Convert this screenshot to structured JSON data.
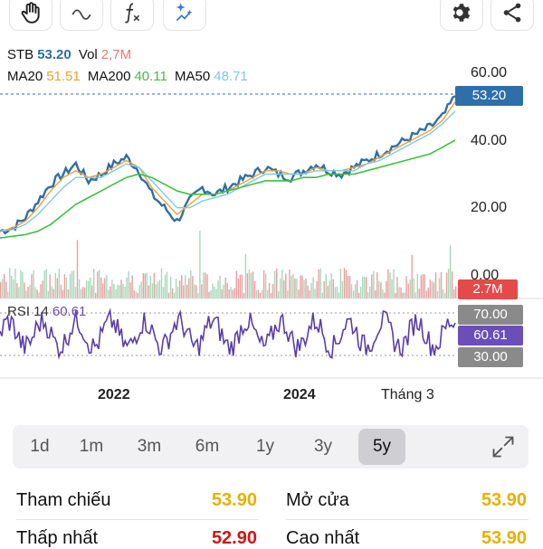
{
  "toolbar": {
    "left_icons": [
      "hand-icon",
      "curve-icon",
      "function-icon",
      "ai-sparkle-icon"
    ],
    "right_icons": [
      "gear-icon",
      "share-icon"
    ]
  },
  "legend": {
    "symbol": "STB",
    "price": "53.20",
    "vol_label": "Vol",
    "vol": "2,7M",
    "ma20_label": "MA20",
    "ma20": "51.51",
    "ma200_label": "MA200",
    "ma200": "40.11",
    "ma50_label": "MA50",
    "ma50": "48.71",
    "rsi_label": "RSI 14",
    "rsi": "60.61"
  },
  "colors": {
    "price_line": "#2f6ea8",
    "ma20": "#f0a030",
    "ma200": "#3fbf3f",
    "ma50": "#7ec8e8",
    "rsi": "#5a3ea8",
    "price_box": "#2e6fa8",
    "vol_box": "#e44a4a",
    "rsi_box": "#6a4fb8",
    "level_box": "#8a8a8a"
  },
  "axis": {
    "y_labels": [
      "60.00",
      "40.00",
      "20.00",
      "0.00"
    ],
    "x_labels": [
      "2022",
      "2024",
      "Tháng 3"
    ]
  },
  "badges": {
    "price": "53.20",
    "volume": "2.7M",
    "rsi_high": "70.00",
    "rsi_value": "60.61",
    "rsi_low": "30.00"
  },
  "ranges": {
    "items": [
      "1d",
      "1m",
      "3m",
      "6m",
      "1y",
      "3y",
      "5y"
    ],
    "active": "5y"
  },
  "stats": {
    "ref_label": "Tham chiếu",
    "ref_value": "53.90",
    "open_label": "Mở cửa",
    "open_value": "53.90",
    "low_label": "Thấp nhất",
    "low_value": "52.90",
    "high_label": "Cao nhất",
    "high_value": "53.90"
  },
  "chart_data": {
    "type": "line",
    "x_labels": [
      "2022",
      "2024",
      "Tháng 3"
    ],
    "y_ticks": [
      0,
      20,
      40,
      60
    ],
    "ylim": [
      0,
      62
    ],
    "series": [
      {
        "name": "STB",
        "values": [
          13,
          14,
          17,
          22,
          27,
          30,
          33,
          28,
          30,
          33,
          35,
          31,
          24,
          20,
          16,
          22,
          26,
          24,
          26,
          28,
          30,
          32,
          30,
          29,
          31,
          33,
          31,
          30,
          32,
          34,
          36,
          38,
          40,
          42,
          44,
          47,
          53.2
        ]
      },
      {
        "name": "MA20",
        "values": [
          13,
          14,
          16,
          20,
          25,
          29,
          31,
          29,
          30,
          32,
          34,
          32,
          26,
          22,
          18,
          21,
          24,
          24,
          25,
          27,
          29,
          31,
          31,
          30,
          30,
          32,
          31,
          31,
          32,
          33,
          35,
          37,
          39,
          41,
          43,
          46,
          51.51
        ]
      },
      {
        "name": "MA50",
        "values": [
          13,
          13.5,
          15,
          18,
          22,
          26,
          29,
          29,
          29,
          31,
          33,
          32,
          28,
          24,
          20,
          20,
          22,
          23,
          24,
          26,
          28,
          30,
          30,
          30,
          30,
          31,
          31,
          31,
          31,
          33,
          34,
          36,
          38,
          40,
          42,
          45,
          48.71
        ]
      },
      {
        "name": "MA200",
        "values": [
          11,
          11.5,
          12,
          13,
          15,
          18,
          21,
          23,
          25,
          27,
          29,
          30,
          29,
          27,
          25,
          24,
          24,
          24,
          25,
          26,
          27,
          28,
          28,
          28,
          29,
          29,
          30,
          30,
          30,
          31,
          32,
          33,
          34,
          35,
          36,
          38,
          40.11
        ]
      }
    ],
    "rsi": {
      "name": "RSI 14",
      "value": 60.61,
      "levels": [
        70,
        30
      ]
    },
    "volume": {
      "last": "2.7M"
    }
  }
}
